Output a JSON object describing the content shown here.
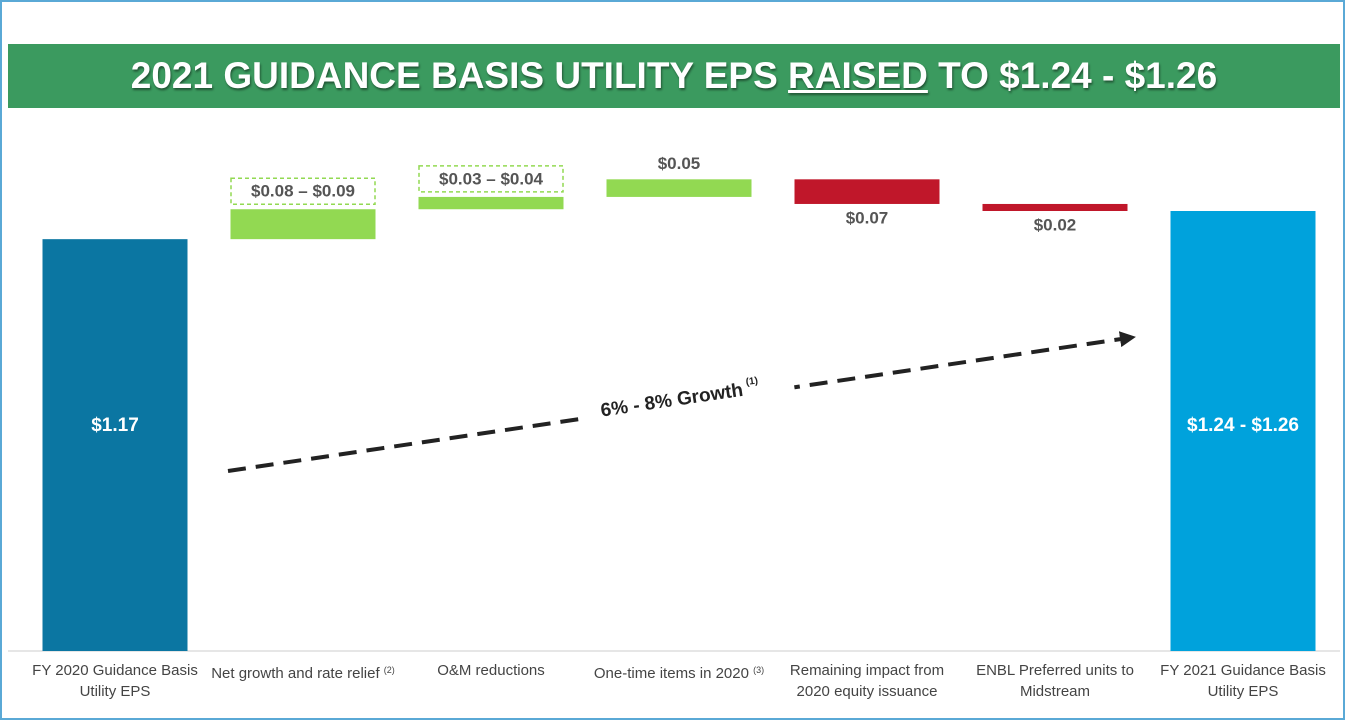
{
  "chart_data": {
    "type": "waterfall",
    "title": {
      "before": "2021 GUIDANCE BASIS UTILITY EPS ",
      "emphasis": "RAISED",
      "after": " TO $1.24 - $1.26"
    },
    "categories": [
      "FY 2020 Guidance Basis Utility EPS",
      "Net growth and rate relief",
      "O&M reductions",
      "One-time items in 2020",
      "Remaining impact from 2020 equity issuance",
      "ENBL Preferred units to Midstream",
      "FY 2021 Guidance Basis Utility EPS"
    ],
    "category_notes": [
      null,
      "(2)",
      null,
      "(3)",
      null,
      null,
      null
    ],
    "values": [
      1.17,
      [
        0.08,
        0.09
      ],
      [
        0.03,
        0.04
      ],
      0.05,
      -0.07,
      -0.02,
      [
        1.24,
        1.26
      ]
    ],
    "value_labels": [
      "$1.17",
      "$0.08 – $0.09",
      "$0.03 – $0.04",
      "$0.05",
      "$0.07",
      "$0.02",
      "$1.24 - $1.26"
    ],
    "colors": {
      "start": "#0b76a2",
      "end": "#00a2dc",
      "increase": "#92d952",
      "decrease": "#c0172a"
    },
    "annotation": {
      "text": "6% - 8% Growth",
      "note": "(1)"
    }
  }
}
